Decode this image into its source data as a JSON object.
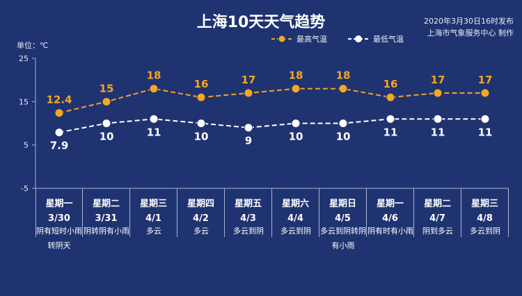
{
  "header": {
    "title": "上海10天天气趋势",
    "publish_time": "2020年3月30日16时发布",
    "publisher": "上海市气象服务中心 制作",
    "unit": "单位：℃"
  },
  "colors": {
    "background": "#1f3370",
    "high": "#f5a623",
    "low": "#ffffff",
    "axis": "#aab6d6"
  },
  "chart_data": {
    "type": "line",
    "categories": [
      "星期一 3/30",
      "星期二 3/31",
      "星期三 4/1",
      "星期四 4/2",
      "星期五 4/3",
      "星期六 4/4",
      "星期日 4/5",
      "星期一 4/6",
      "星期二 4/7",
      "星期三 4/8"
    ],
    "weekdays": [
      "星期一",
      "星期二",
      "星期三",
      "星期四",
      "星期五",
      "星期六",
      "星期日",
      "星期一",
      "星期二",
      "星期三"
    ],
    "dates": [
      "3/30",
      "3/31",
      "4/1",
      "4/2",
      "4/3",
      "4/4",
      "4/5",
      "4/6",
      "4/7",
      "4/8"
    ],
    "series": [
      {
        "name": "最高气温",
        "values": [
          12.4,
          15,
          18,
          16,
          17,
          18,
          18,
          16,
          17,
          17
        ],
        "labels": [
          "12.4",
          "15",
          "18",
          "16",
          "17",
          "18",
          "18",
          "16",
          "17",
          "17"
        ]
      },
      {
        "name": "最低气温",
        "values": [
          7.9,
          10,
          11,
          10,
          9,
          10,
          10,
          11,
          11,
          11
        ],
        "labels": [
          "7.9",
          "10",
          "11",
          "10",
          "9",
          "10",
          "10",
          "11",
          "11",
          "11"
        ]
      }
    ],
    "ylim": [
      -5,
      25
    ],
    "yticks": [
      25,
      15,
      5,
      -5
    ],
    "legend_position": "top-right",
    "grid": false
  },
  "descriptions": [
    "阴有短时小雨转阴天",
    "阴转阴有小雨",
    "多云",
    "多云",
    "多云到阴",
    "多云到阴",
    "多云到阴转阴有小雨",
    "阴有时有小雨",
    "阴到多云",
    "多云到阴"
  ]
}
